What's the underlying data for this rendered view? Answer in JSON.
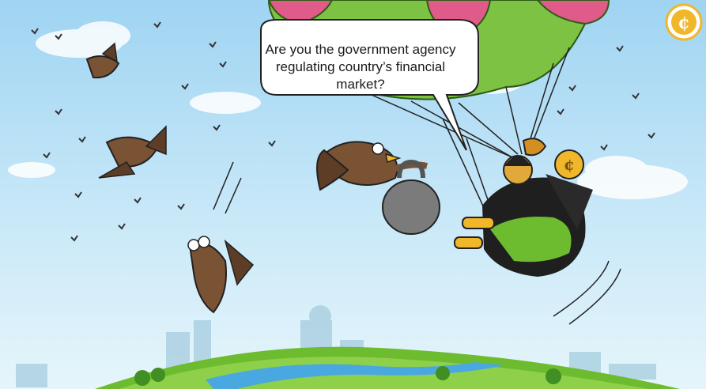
{
  "speech_bubble": {
    "line1": "Are you the government agency",
    "line2": "regulating country’s financial market?"
  },
  "logo": {
    "icon": "coin-c-icon"
  },
  "colors": {
    "sky": "#a9d9f3",
    "grass": "#6dbb2f",
    "river": "#4aa8e0",
    "parachute_green": "#7dc242",
    "parachute_pink": "#e05a8a",
    "bird_brown": "#7a5234",
    "coin_gold": "#f0b72a",
    "weight_gray": "#7b7b7b"
  }
}
